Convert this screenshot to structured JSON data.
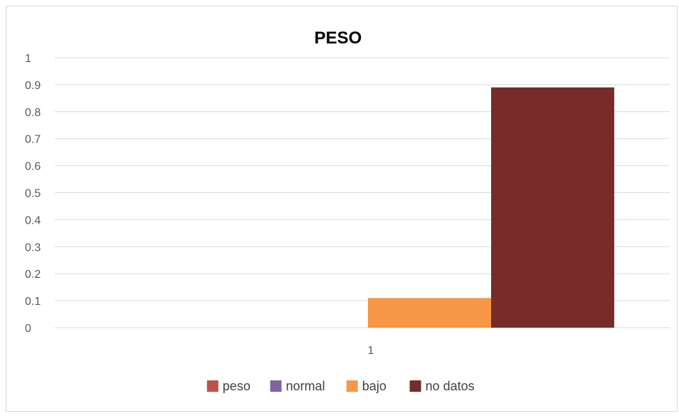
{
  "chart_data": {
    "type": "bar",
    "title": "PESO",
    "categories": [
      "1"
    ],
    "series": [
      {
        "name": "peso",
        "values": [
          0
        ],
        "color": "#C0504D"
      },
      {
        "name": "normal",
        "values": [
          0
        ],
        "color": "#8064A2"
      },
      {
        "name": "bajo",
        "values": [
          0.11
        ],
        "color": "#F79646"
      },
      {
        "name": "no datos",
        "values": [
          0.89
        ],
        "color": "#772C2A"
      }
    ],
    "y_ticks": [
      "0",
      "0.1",
      "0.2",
      "0.3",
      "0.4",
      "0.5",
      "0.6",
      "0.7",
      "0.8",
      "0.9",
      "1"
    ],
    "ylim": [
      0,
      1
    ],
    "grid": true,
    "legend_position": "bottom"
  }
}
